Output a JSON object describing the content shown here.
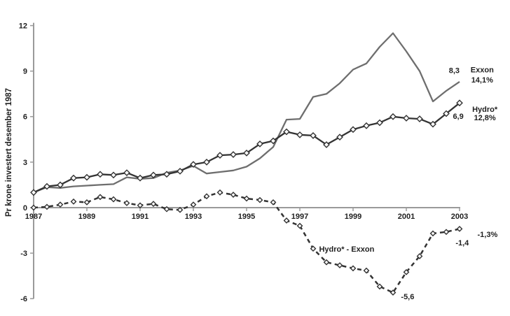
{
  "chart_data": {
    "type": "line",
    "title": "",
    "ylabel": "Pr krone investert desember 1987",
    "xlabel": "",
    "ylim": [
      -6,
      12
    ],
    "xlim": [
      1987,
      2003
    ],
    "grid": false,
    "legend_position": "inline-right-annotations",
    "ytick_values": [
      12,
      9,
      6,
      3,
      0,
      -3,
      -6
    ],
    "ytick_labels": [
      "12",
      "9",
      "6",
      "3",
      "0",
      "-3",
      "-6"
    ],
    "xtick_values": [
      1987,
      1989,
      1991,
      1993,
      1995,
      1997,
      1999,
      2001,
      2003
    ],
    "xtick_labels": [
      "1987",
      "1989",
      "1991",
      "1993",
      "1995",
      "1997",
      "1999",
      "2001",
      "2003"
    ],
    "x": [
      1987,
      1987.5,
      1988,
      1988.5,
      1989,
      1989.5,
      1990,
      1990.5,
      1991,
      1991.5,
      1992,
      1992.5,
      1993,
      1993.5,
      1994,
      1994.5,
      1995,
      1995.5,
      1996,
      1996.5,
      1997,
      1997.5,
      1998,
      1998.5,
      1999,
      1999.5,
      2000,
      2000.5,
      2001,
      2001.5,
      2002,
      2002.5,
      2003
    ],
    "series": [
      {
        "name": "Hydro* - Exxon",
        "color": "#333333",
        "marker": "diamond",
        "dashed": true,
        "end_value_label": "-1,4",
        "values": [
          0.0,
          0.05,
          0.2,
          0.4,
          0.35,
          0.7,
          0.55,
          0.3,
          0.15,
          0.25,
          -0.1,
          -0.15,
          0.2,
          0.75,
          1.0,
          0.85,
          0.6,
          0.5,
          0.35,
          -0.85,
          -1.2,
          -2.7,
          -3.6,
          -3.8,
          -4.0,
          -4.15,
          -5.2,
          -5.6,
          -4.25,
          -3.2,
          -1.7,
          -1.6,
          -1.4
        ]
      },
      {
        "name": "Exxon",
        "color": "#6e6e6e",
        "marker": null,
        "dashed": false,
        "end_value_label": "8,3",
        "values": [
          1.0,
          1.35,
          1.3,
          1.4,
          1.45,
          1.5,
          1.55,
          2.0,
          1.9,
          1.95,
          2.3,
          2.45,
          2.75,
          2.25,
          2.35,
          2.45,
          2.7,
          3.25,
          4.0,
          5.8,
          5.85,
          7.3,
          7.5,
          8.2,
          9.1,
          9.5,
          10.6,
          11.5,
          10.3,
          9.0,
          7.0,
          7.7,
          8.3
        ]
      },
      {
        "name": "Hydro*",
        "color": "#333333",
        "marker": "diamond",
        "dashed": false,
        "end_value_label": "6,9",
        "values": [
          1.0,
          1.4,
          1.5,
          1.95,
          2.0,
          2.2,
          2.15,
          2.3,
          1.95,
          2.15,
          2.2,
          2.4,
          2.85,
          3.0,
          3.45,
          3.5,
          3.6,
          4.2,
          4.4,
          5.0,
          4.8,
          4.75,
          4.15,
          4.65,
          5.15,
          5.4,
          5.6,
          6.0,
          5.9,
          5.85,
          5.5,
          6.2,
          6.9
        ]
      }
    ],
    "annotations": [
      {
        "id": "exxon-end-value",
        "text": "8,3",
        "year": 2002.8,
        "value": 9.05
      },
      {
        "id": "exxon-name",
        "text": "Exxon",
        "year": 2003.85,
        "value": 9.1
      },
      {
        "id": "exxon-return",
        "text": "14,1%",
        "year": 2003.85,
        "value": 8.43
      },
      {
        "id": "hydro-end-value",
        "text": "6,9",
        "year": 2002.95,
        "value": 6.04
      },
      {
        "id": "hydro-name",
        "text": "Hydro*",
        "year": 2003.95,
        "value": 6.5
      },
      {
        "id": "hydro-return",
        "text": "12,8%",
        "year": 2003.95,
        "value": 5.94
      },
      {
        "id": "diff-name",
        "text": "Hydro* - Exxon",
        "year": 1998.76,
        "value": -2.72
      },
      {
        "id": "diff-min-value",
        "text": "-5,6",
        "year": 2001.05,
        "value": -5.85
      },
      {
        "id": "diff-end-value",
        "text": "-1,4",
        "year": 2003.1,
        "value": -2.3
      },
      {
        "id": "diff-return",
        "text": "-1,3%",
        "year": 2004.05,
        "value": -1.75
      }
    ]
  },
  "colors": {
    "background": "#ffffff",
    "axis": "#9a9a9a",
    "text": "#1f1f1f"
  }
}
